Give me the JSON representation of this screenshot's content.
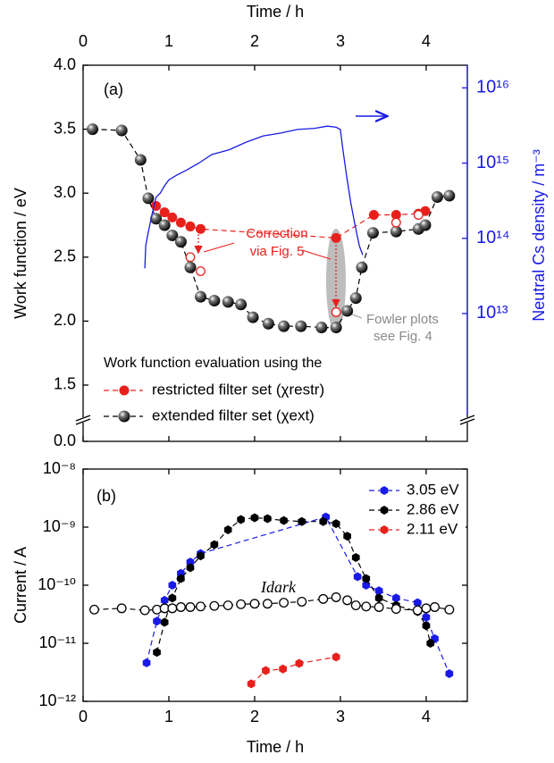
{
  "chart_data": [
    {
      "type": "line",
      "panel_label": "(a)",
      "xlabel": "Time / h",
      "xaxis": "top",
      "ylabel": "Work function / eV",
      "y2label": "Neutral Cs density / m⁻³",
      "xlim": [
        0,
        4.48
      ],
      "xticks": [
        0,
        1,
        2,
        3,
        4
      ],
      "ylim": [
        0,
        4.0
      ],
      "ybreak": [
        0,
        1.06
      ],
      "yticks": [
        {
          "value": 0,
          "label": "0.0"
        },
        1.5,
        {
          "value": 2,
          "label": "2.0"
        },
        2.5,
        {
          "value": 3,
          "label": "3.0"
        },
        3.5,
        {
          "value": 4,
          "label": "4.0"
        }
      ],
      "y2lim": [
        200000000000.0,
        2e+16
      ],
      "y2scale": "log",
      "y2color": "#1a1ae6",
      "y2ticks": [
        {
          "value": 10000000000000.0,
          "label": "10¹³"
        },
        {
          "value": 100000000000000.0,
          "label": "10¹⁴"
        },
        {
          "value": 1000000000000000.0,
          "label": "10¹⁵"
        },
        {
          "value": 1e+16,
          "label": "10¹⁶"
        }
      ],
      "legend_title": "Work function evaluation using the",
      "legend": "lower left",
      "annotations": [
        "Correction",
        "via Fig. 5",
        "Fowler plots",
        "see Fig. 4"
      ],
      "series": [
        {
          "name": "restricted filter set (χrestr)",
          "color": "#e8201c",
          "marker": "circle",
          "linestyle": "dashed",
          "x": [
            0.85,
            0.95,
            1.04,
            1.14,
            1.25,
            1.37,
            2.95,
            3.39,
            3.65,
            3.91,
            3.99
          ],
          "values": [
            2.9,
            2.85,
            2.81,
            2.77,
            2.74,
            2.72,
            2.65,
            2.83,
            2.83,
            2.84,
            2.86
          ]
        },
        {
          "name": "extended filter set (χext)",
          "color": "#000000",
          "marker": "ball",
          "linestyle": "dashed",
          "x": [
            0.11,
            0.45,
            0.67,
            0.76,
            0.85,
            0.95,
            1.04,
            1.14,
            1.25,
            1.37,
            1.53,
            1.69,
            1.84,
            1.98,
            2.16,
            2.34,
            2.54,
            2.78,
            2.95,
            3.08,
            3.18,
            3.25,
            3.38,
            3.65,
            3.91,
            3.99,
            4.13,
            4.27
          ],
          "values": [
            3.5,
            3.49,
            3.26,
            2.96,
            2.8,
            2.75,
            2.67,
            2.62,
            2.42,
            2.19,
            2.16,
            2.15,
            2.13,
            2.03,
            1.98,
            1.96,
            1.96,
            1.95,
            1.95,
            2.08,
            2.18,
            2.42,
            2.69,
            2.7,
            2.72,
            2.75,
            2.97,
            2.98
          ]
        },
        {
          "color": "#e8201c",
          "marker": "open-circle",
          "linestyle": "none",
          "x": [
            1.25,
            1.37,
            2.95,
            3.65,
            3.91
          ],
          "values": [
            2.5,
            2.39,
            2.07,
            2.77,
            2.83
          ]
        },
        {
          "color": "#1a1ae6",
          "marker": "none",
          "linestyle": "solid",
          "axis": "y2",
          "x": [
            0.72,
            0.73,
            0.76,
            0.8,
            0.85,
            0.9,
            0.95,
            1.0,
            1.1,
            1.2,
            1.35,
            1.5,
            1.7,
            1.9,
            2.1,
            2.3,
            2.5,
            2.7,
            2.85,
            2.95,
            3.0,
            3.03,
            3.07,
            3.12,
            3.17,
            3.22,
            3.26
          ],
          "values": [
            40000000000000.0,
            80000000000000.0,
            120000000000000.0,
            200000000000000.0,
            350000000000000.0,
            400000000000000.0,
            500000000000000.0,
            600000000000000.0,
            700000000000000.0,
            800000000000000.0,
            1000000000000000.0,
            1300000000000000.0,
            1500000000000000.0,
            1900000000000000.0,
            2300000000000000.0,
            2500000000000000.0,
            2800000000000000.0,
            2900000000000000.0,
            3100000000000000.0,
            3000000000000000.0,
            2800000000000000.0,
            1500000000000000.0,
            700000000000000.0,
            300000000000000.0,
            150000000000000.0,
            80000000000000.0,
            60000000000000.0
          ]
        }
      ]
    },
    {
      "type": "line",
      "panel_label": "(b)",
      "xlabel": "Time / h",
      "xaxis": "bottom",
      "ylabel": "Current / A",
      "xlim": [
        0,
        4.48
      ],
      "xticks": [
        0,
        1,
        2,
        3,
        4
      ],
      "ylim": [
        1e-12,
        1e-08
      ],
      "yscale": "log",
      "yticks": [
        {
          "value": 1e-12,
          "label": "10⁻¹²"
        },
        {
          "value": 1e-11,
          "label": "10⁻¹¹"
        },
        {
          "value": 1e-10,
          "label": "10⁻¹⁰"
        },
        {
          "value": 1e-09,
          "label": "10⁻⁹"
        },
        {
          "value": 1e-08,
          "label": "10⁻⁸"
        }
      ],
      "legend": "upper right",
      "annotations": [
        "Idark"
      ],
      "series": [
        {
          "name": "3.05 eV",
          "color": "#1a1ae6",
          "marker": "hexagon",
          "linestyle": "dashed",
          "x": [
            0.74,
            0.86,
            0.95,
            1.04,
            1.14,
            1.25,
            1.37,
            2.83,
            3.2,
            3.3,
            3.45,
            3.65,
            3.9,
            4.0,
            4.1,
            4.27
          ],
          "values": [
            4.6e-12,
            2.4e-11,
            5.5e-11,
            1e-10,
            1.6e-10,
            2.5e-10,
            3.5e-10,
            1.5e-09,
            1.4e-10,
            1e-10,
            8e-11,
            6e-11,
            5e-11,
            2.8e-11,
            1.2e-11,
            3e-12
          ]
        },
        {
          "name": "2.86 eV",
          "color": "#000000",
          "marker": "hexagon",
          "linestyle": "dashed",
          "x": [
            0.86,
            0.95,
            1.04,
            1.14,
            1.25,
            1.37,
            1.53,
            1.69,
            1.84,
            2.0,
            2.15,
            2.34,
            2.55,
            2.8,
            2.95,
            3.08,
            3.18,
            3.3,
            3.45,
            3.65,
            3.9,
            4.0,
            4.05
          ],
          "values": [
            7e-12,
            2.3e-11,
            6e-11,
            1.3e-10,
            2e-10,
            3.2e-10,
            5e-10,
            9e-10,
            1.35e-09,
            1.45e-09,
            1.4e-09,
            1.3e-09,
            1.25e-09,
            1.25e-09,
            1.15e-09,
            7e-10,
            3e-10,
            1.3e-10,
            6e-11,
            4.5e-11,
            3.5e-11,
            2e-11,
            1e-11
          ]
        },
        {
          "name": "2.11 eV",
          "color": "#e8201c",
          "marker": "hexagon",
          "linestyle": "dashed",
          "x": [
            1.96,
            2.13,
            2.33,
            2.52,
            2.95
          ],
          "values": [
            2e-12,
            3.4e-12,
            3.6e-12,
            4.5e-12,
            5.8e-12
          ]
        },
        {
          "color": "#000000",
          "marker": "open-circle",
          "linestyle": "dashed",
          "x": [
            0.13,
            0.45,
            0.72,
            0.86,
            0.95,
            1.04,
            1.14,
            1.25,
            1.37,
            1.53,
            1.69,
            1.84,
            2.0,
            2.15,
            2.34,
            2.55,
            2.8,
            2.95,
            3.08,
            3.18,
            3.3,
            3.45,
            3.65,
            3.9,
            4.0,
            4.1,
            4.27
          ],
          "values": [
            3.8e-11,
            4e-11,
            3.7e-11,
            3.8e-11,
            4e-11,
            4e-11,
            4.2e-11,
            4.2e-11,
            4.3e-11,
            4.4e-11,
            4.5e-11,
            4.7e-11,
            4.8e-11,
            4.8e-11,
            5e-11,
            5.2e-11,
            5.8e-11,
            6.2e-11,
            5.5e-11,
            4.5e-11,
            4.3e-11,
            4.2e-11,
            3.9e-11,
            3.7e-11,
            4e-11,
            4.2e-11,
            3.8e-11
          ]
        }
      ]
    }
  ]
}
